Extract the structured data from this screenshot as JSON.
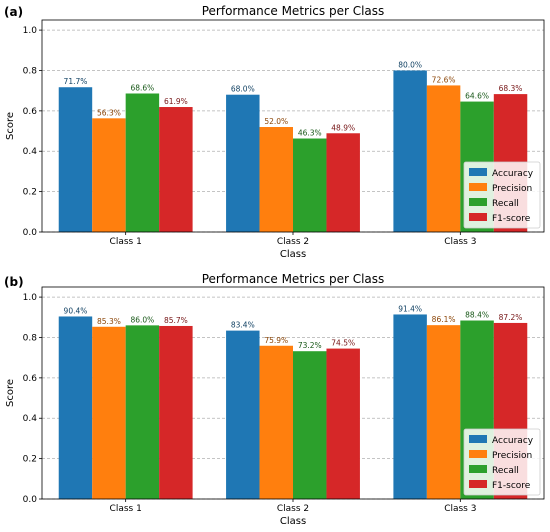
{
  "panel_labels": [
    "(a)",
    "(b)"
  ],
  "colors": {
    "Accuracy": "#1f77b4",
    "Precision": "#ff7f0e",
    "Recall": "#2ca02c",
    "F1-score": "#d62728"
  },
  "chart_data": [
    {
      "type": "bar",
      "title": "Performance Metrics per Class",
      "xlabel": "Class",
      "ylabel": "Score",
      "ylim": [
        0,
        1.05
      ],
      "yticks": [
        "0.0",
        "0.2",
        "0.4",
        "0.6",
        "0.8",
        "1.0"
      ],
      "grid": true,
      "legend_position": "lower-right",
      "categories": [
        "Class 1",
        "Class 2",
        "Class 3"
      ],
      "series": [
        {
          "name": "Accuracy",
          "values": [
            0.717,
            0.68,
            0.8
          ],
          "labels": [
            "71.7%",
            "68.0%",
            "80.0%"
          ]
        },
        {
          "name": "Precision",
          "values": [
            0.563,
            0.52,
            0.726
          ],
          "labels": [
            "56.3%",
            "52.0%",
            "72.6%"
          ]
        },
        {
          "name": "Recall",
          "values": [
            0.686,
            0.463,
            0.646
          ],
          "labels": [
            "68.6%",
            "46.3%",
            "64.6%"
          ]
        },
        {
          "name": "F1-score",
          "values": [
            0.619,
            0.489,
            0.683
          ],
          "labels": [
            "61.9%",
            "48.9%",
            "68.3%"
          ]
        }
      ]
    },
    {
      "type": "bar",
      "title": "Performance Metrics per Class",
      "xlabel": "Class",
      "ylabel": "Score",
      "ylim": [
        0,
        1.05
      ],
      "yticks": [
        "0.0",
        "0.2",
        "0.4",
        "0.6",
        "0.8",
        "1.0"
      ],
      "grid": true,
      "legend_position": "lower-right",
      "categories": [
        "Class 1",
        "Class 2",
        "Class 3"
      ],
      "series": [
        {
          "name": "Accuracy",
          "values": [
            0.904,
            0.834,
            0.914
          ],
          "labels": [
            "90.4%",
            "83.4%",
            "91.4%"
          ]
        },
        {
          "name": "Precision",
          "values": [
            0.853,
            0.759,
            0.861
          ],
          "labels": [
            "85.3%",
            "75.9%",
            "86.1%"
          ]
        },
        {
          "name": "Recall",
          "values": [
            0.86,
            0.732,
            0.884
          ],
          "labels": [
            "86.0%",
            "73.2%",
            "88.4%"
          ]
        },
        {
          "name": "F1-score",
          "values": [
            0.857,
            0.745,
            0.872
          ],
          "labels": [
            "85.7%",
            "74.5%",
            "87.2%"
          ]
        }
      ]
    }
  ]
}
